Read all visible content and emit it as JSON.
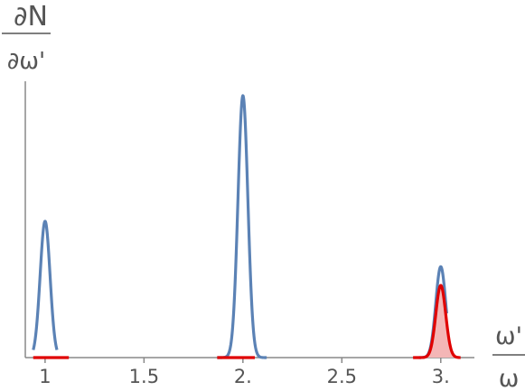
{
  "chart_data": {
    "type": "line",
    "ylabel": {
      "numerator": "∂N",
      "denominator": "∂ω'"
    },
    "xlabel": {
      "numerator": "ω'",
      "denominator": "ω"
    },
    "xlim": [
      0.9,
      3.17
    ],
    "ylim": [
      0,
      1
    ],
    "x_ticks": [
      1,
      1.5,
      2,
      2.5,
      3
    ],
    "x_tick_labels": [
      "1",
      "1.5",
      "2.",
      "2.5",
      "3."
    ],
    "grid": false,
    "series": [
      {
        "color": "#5b82b5",
        "filled": false,
        "peaks": [
          {
            "center": 1.0,
            "height": 0.51,
            "width": 0.025
          },
          {
            "center": 2.0,
            "height": 0.98,
            "width": 0.025
          },
          {
            "center": 3.0,
            "height": 0.34,
            "width": 0.025
          }
        ],
        "x_range": [
          [
            0.94,
            1.06
          ],
          [
            1.87,
            2.12
          ],
          [
            2.89,
            3.03
          ]
        ]
      },
      {
        "color": "#e00000",
        "fill_color": "#f4b6b6",
        "filled": true,
        "peaks": [
          {
            "center": 3.0,
            "height": 0.27,
            "width": 0.025
          }
        ],
        "x_range": [
          [
            0.94,
            1.12
          ],
          [
            1.87,
            2.06
          ],
          [
            2.86,
            3.1
          ]
        ]
      }
    ]
  }
}
